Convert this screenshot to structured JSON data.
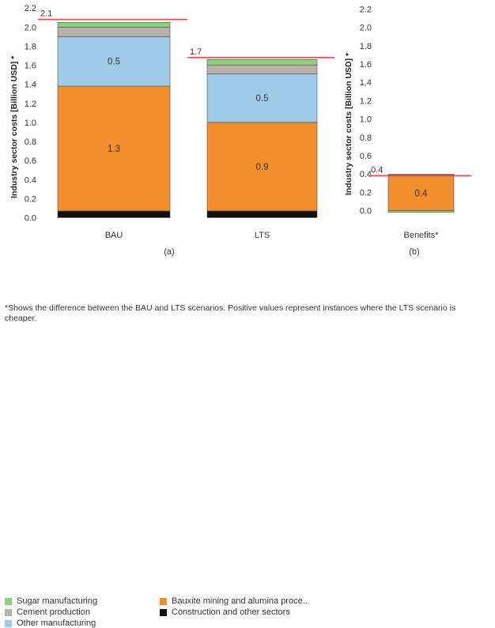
{
  "chart_data": [
    {
      "type": "bar",
      "stacked": true,
      "panel_label": "(a)",
      "ylabel": "Industry sector costs [Billion USD] *",
      "ylim": [
        0,
        2.2
      ],
      "yticks": [
        "0.0",
        "0.2",
        "0.4",
        "0.6",
        "0.8",
        "1.0",
        "1.2",
        "1.4",
        "1.6",
        "1.8",
        "2.0",
        "2.2"
      ],
      "categories": [
        "BAU",
        "LTS"
      ],
      "series": [
        {
          "name": "Construction and other sectors",
          "color": "#111111",
          "values": [
            0.07,
            0.07
          ]
        },
        {
          "name": "Bauxite mining and alumina proce..",
          "color": "#f28e2b",
          "values": [
            1.31,
            0.93
          ]
        },
        {
          "name": "Other manufacturing",
          "color": "#a0cbe8",
          "values": [
            0.52,
            0.51
          ]
        },
        {
          "name": "Cement production",
          "color": "#bab0ac",
          "values": [
            0.1,
            0.09
          ]
        },
        {
          "name": "Sugar manufacturing",
          "color": "#8cd17d",
          "values": [
            0.05,
            0.06
          ]
        }
      ],
      "data_labels": [
        {
          "category": "BAU",
          "series": "Bauxite mining and alumina proce..",
          "text": "1.3"
        },
        {
          "category": "BAU",
          "series": "Other manufacturing",
          "text": "0.5"
        },
        {
          "category": "LTS",
          "series": "Bauxite mining and alumina proce..",
          "text": "0.9"
        },
        {
          "category": "LTS",
          "series": "Other manufacturing",
          "text": "0.5"
        }
      ],
      "reference_lines": [
        {
          "category": "BAU",
          "value": 2.08,
          "label": "2.1",
          "color": "#e15759"
        },
        {
          "category": "LTS",
          "value": 1.68,
          "label": "1.7",
          "color": "#e15759"
        }
      ]
    },
    {
      "type": "bar",
      "stacked": true,
      "panel_label": "(b)",
      "ylabel": "Industry sector costs [Billion USD] *",
      "ylim": [
        -0.05,
        2.2
      ],
      "yticks": [
        "0.0",
        "0.2",
        "0.4",
        "0.6",
        "0.8",
        "1.0",
        "1.2",
        "1.4",
        "1.6",
        "1.8",
        "2.0",
        "2.2"
      ],
      "categories": [
        "Benefits*"
      ],
      "series": [
        {
          "name": "Sugar manufacturing",
          "color": "#8cd17d",
          "values": [
            -0.02
          ]
        },
        {
          "name": "Bauxite mining and alumina proce..",
          "color": "#f28e2b",
          "values": [
            0.38
          ]
        },
        {
          "name": "Other manufacturing",
          "color": "#a0cbe8",
          "values": [
            0.005
          ]
        },
        {
          "name": "Cement production",
          "color": "#bab0ac",
          "values": [
            0.005
          ]
        },
        {
          "name": "Construction and other sectors",
          "color": "#111111",
          "values": [
            0.005
          ]
        }
      ],
      "data_labels": [
        {
          "category": "Benefits*",
          "series": "Bauxite mining and alumina proce..",
          "text": "0.4"
        }
      ],
      "reference_lines": [
        {
          "category": "Benefits*",
          "value": 0.38,
          "label": "0.4",
          "color": "#e15759"
        }
      ]
    }
  ],
  "legend": [
    {
      "name": "Sugar manufacturing",
      "color": "#8cd17d"
    },
    {
      "name": "Bauxite mining and alumina proce..",
      "color": "#f28e2b"
    },
    {
      "name": "Cement production",
      "color": "#bab0ac"
    },
    {
      "name": "Construction and other sectors",
      "color": "#111111"
    },
    {
      "name": "Other manufacturing",
      "color": "#a0cbe8"
    }
  ],
  "footnote": "*Shows the difference between the BAU and LTS scenarios. Positive values represent instances where the LTS scenario is cheaper."
}
